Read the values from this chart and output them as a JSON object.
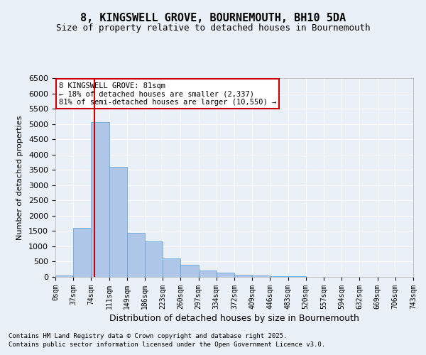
{
  "title1": "8, KINGSWELL GROVE, BOURNEMOUTH, BH10 5DA",
  "title2": "Size of property relative to detached houses in Bournemouth",
  "xlabel": "Distribution of detached houses by size in Bournemouth",
  "ylabel": "Number of detached properties",
  "footnote1": "Contains HM Land Registry data © Crown copyright and database right 2025.",
  "footnote2": "Contains public sector information licensed under the Open Government Licence v3.0.",
  "bin_labels": [
    "0sqm",
    "37sqm",
    "74sqm",
    "111sqm",
    "149sqm",
    "186sqm",
    "223sqm",
    "260sqm",
    "297sqm",
    "334sqm",
    "372sqm",
    "409sqm",
    "446sqm",
    "483sqm",
    "520sqm",
    "557sqm",
    "594sqm",
    "632sqm",
    "669sqm",
    "706sqm",
    "743sqm"
  ],
  "bar_values": [
    50,
    1600,
    5050,
    3600,
    1450,
    1150,
    600,
    400,
    200,
    130,
    80,
    50,
    30,
    15,
    10,
    5,
    3,
    2,
    1,
    1
  ],
  "bar_color": "#aec6e8",
  "bar_edge_color": "#5a9fd4",
  "property_line_color": "#cc0000",
  "annotation_title": "8 KINGSWELL GROVE: 81sqm",
  "annotation_line1": "← 18% of detached houses are smaller (2,337)",
  "annotation_line2": "81% of semi-detached houses are larger (10,550) →",
  "annotation_box_color": "#ffffff",
  "annotation_box_edge": "#cc0000",
  "ylim": [
    0,
    6500
  ],
  "yticks": [
    0,
    500,
    1000,
    1500,
    2000,
    2500,
    3000,
    3500,
    4000,
    4500,
    5000,
    5500,
    6000,
    6500
  ],
  "bg_color": "#eaf0f8",
  "plot_bg_color": "#eaf0f8",
  "grid_color": "#ffffff"
}
